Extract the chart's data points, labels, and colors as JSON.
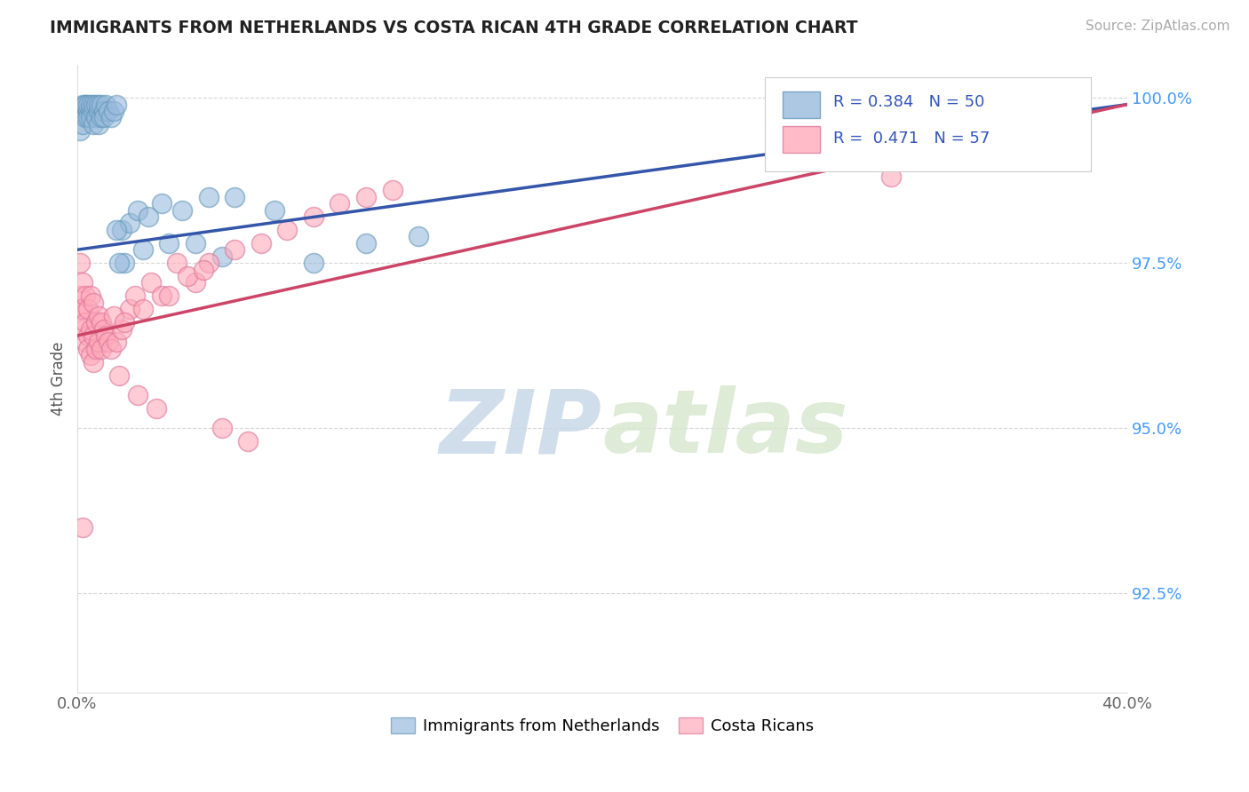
{
  "title": "IMMIGRANTS FROM NETHERLANDS VS COSTA RICAN 4TH GRADE CORRELATION CHART",
  "source_text": "Source: ZipAtlas.com",
  "ylabel": "4th Grade",
  "xlim": [
    0.0,
    0.4
  ],
  "ylim": [
    0.91,
    1.005
  ],
  "xtick_positions": [
    0.0,
    0.1,
    0.2,
    0.3,
    0.4
  ],
  "xtick_labels": [
    "0.0%",
    "",
    "",
    "",
    "40.0%"
  ],
  "ytick_positions": [
    0.925,
    0.95,
    0.975,
    1.0
  ],
  "ytick_labels": [
    "92.5%",
    "95.0%",
    "97.5%",
    "100.0%"
  ],
  "blue_color": "#99BBDD",
  "blue_edge_color": "#6699BB",
  "pink_color": "#FFAABB",
  "pink_edge_color": "#DD7799",
  "blue_line_color": "#3355AA",
  "pink_line_color": "#CC4466",
  "legend_text_color": "#3355BB",
  "legend_r_blue": "R = 0.384",
  "legend_n_blue": "N = 50",
  "legend_r_pink": "R =  0.471",
  "legend_n_pink": "N = 57",
  "watermark_zip": "ZIP",
  "watermark_atlas": "atlas",
  "blue_line": [
    [
      0.0,
      0.977
    ],
    [
      0.4,
      0.999
    ]
  ],
  "pink_line": [
    [
      0.0,
      0.964
    ],
    [
      0.4,
      0.999
    ]
  ],
  "blue_scatter_x": [
    0.001,
    0.001,
    0.002,
    0.002,
    0.003,
    0.003,
    0.003,
    0.004,
    0.004,
    0.004,
    0.005,
    0.005,
    0.005,
    0.006,
    0.006,
    0.006,
    0.007,
    0.007,
    0.008,
    0.008,
    0.008,
    0.009,
    0.009,
    0.01,
    0.01,
    0.011,
    0.012,
    0.013,
    0.014,
    0.015,
    0.017,
    0.02,
    0.023,
    0.027,
    0.032,
    0.04,
    0.05,
    0.06,
    0.075,
    0.09,
    0.11,
    0.13,
    0.045,
    0.055,
    0.018,
    0.025,
    0.035,
    0.016,
    0.38,
    0.015
  ],
  "blue_scatter_y": [
    0.998,
    0.995,
    0.999,
    0.996,
    0.999,
    0.997,
    0.999,
    0.998,
    0.997,
    0.999,
    0.998,
    0.997,
    0.999,
    0.998,
    0.996,
    0.999,
    0.997,
    0.999,
    0.998,
    0.996,
    0.999,
    0.997,
    0.999,
    0.998,
    0.997,
    0.999,
    0.998,
    0.997,
    0.998,
    0.999,
    0.98,
    0.981,
    0.983,
    0.982,
    0.984,
    0.983,
    0.985,
    0.985,
    0.983,
    0.975,
    0.978,
    0.979,
    0.978,
    0.976,
    0.975,
    0.977,
    0.978,
    0.975,
    1.0,
    0.98
  ],
  "pink_scatter_x": [
    0.001,
    0.001,
    0.001,
    0.002,
    0.002,
    0.002,
    0.003,
    0.003,
    0.003,
    0.004,
    0.004,
    0.004,
    0.005,
    0.005,
    0.005,
    0.006,
    0.006,
    0.006,
    0.007,
    0.007,
    0.008,
    0.008,
    0.009,
    0.009,
    0.01,
    0.011,
    0.012,
    0.013,
    0.015,
    0.017,
    0.02,
    0.022,
    0.025,
    0.028,
    0.032,
    0.038,
    0.045,
    0.05,
    0.06,
    0.07,
    0.08,
    0.09,
    0.1,
    0.11,
    0.12,
    0.014,
    0.018,
    0.035,
    0.042,
    0.048,
    0.016,
    0.023,
    0.03,
    0.055,
    0.065,
    0.31,
    0.002
  ],
  "pink_scatter_y": [
    0.975,
    0.97,
    0.968,
    0.972,
    0.968,
    0.965,
    0.97,
    0.966,
    0.963,
    0.968,
    0.964,
    0.962,
    0.97,
    0.965,
    0.961,
    0.969,
    0.964,
    0.96,
    0.966,
    0.962,
    0.967,
    0.963,
    0.966,
    0.962,
    0.965,
    0.964,
    0.963,
    0.962,
    0.963,
    0.965,
    0.968,
    0.97,
    0.968,
    0.972,
    0.97,
    0.975,
    0.972,
    0.975,
    0.977,
    0.978,
    0.98,
    0.982,
    0.984,
    0.985,
    0.986,
    0.967,
    0.966,
    0.97,
    0.973,
    0.974,
    0.958,
    0.955,
    0.953,
    0.95,
    0.948,
    0.988,
    0.935
  ]
}
